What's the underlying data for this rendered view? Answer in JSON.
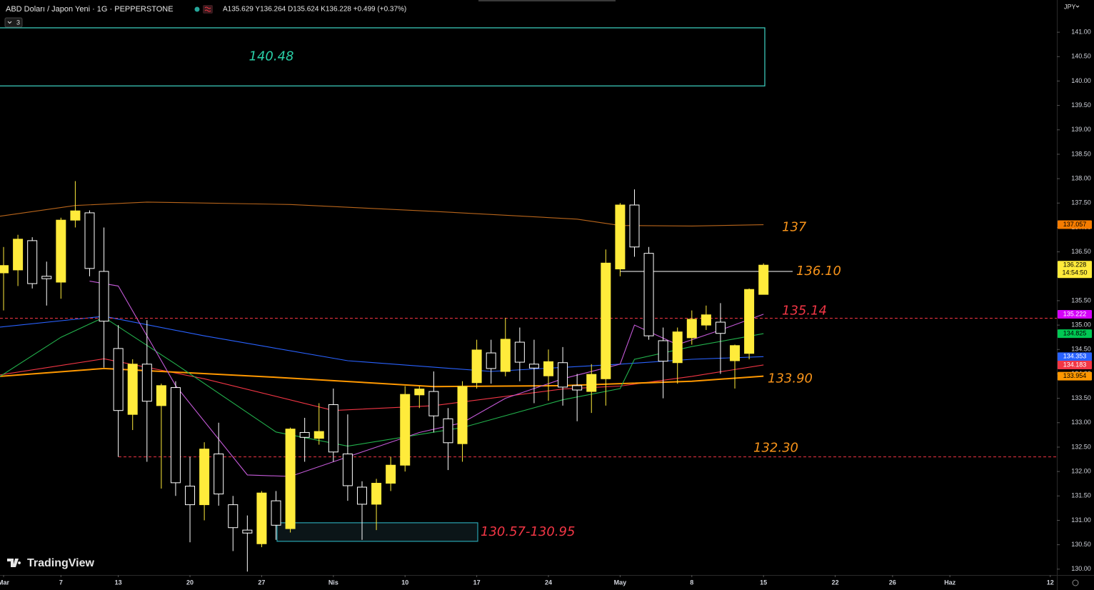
{
  "chart_data": {
    "type": "candlestick",
    "title": "ABD Doları / Japon Yeni · 1G · PEPPERSTONE",
    "quote": "A135.629 Y136.264 D135.624 K136.228 +0.499 (+0.37%)",
    "indicator_count": 3,
    "currency": "JPY",
    "watermark": "TradingView",
    "up_color": "#ffeb3b",
    "down_color": "#ffffff",
    "open": [
      136.07,
      136.13,
      136.73,
      136.0,
      135.88,
      137.15,
      137.3,
      136.1,
      134.52,
      133.17,
      134.2,
      133.35,
      133.72,
      131.7,
      131.32,
      132.36,
      131.32,
      130.8,
      130.52,
      131.4,
      130.83,
      132.8,
      132.68,
      133.37,
      132.36,
      131.68,
      131.33,
      131.76,
      132.13,
      133.57,
      133.64,
      133.08,
      132.57,
      133.82,
      134.43,
      134.05,
      134.65,
      134.2,
      133.96,
      134.23,
      133.76,
      133.64,
      133.9,
      136.15,
      137.46,
      136.47,
      134.68,
      134.23,
      134.74,
      135.0,
      135.06,
      134.27,
      134.42,
      135.629
    ],
    "high": [
      136.6,
      136.85,
      136.8,
      136.3,
      137.2,
      137.95,
      137.35,
      137.0,
      135.0,
      134.3,
      135.1,
      133.8,
      133.85,
      132.3,
      132.6,
      133.0,
      131.5,
      131.1,
      131.6,
      131.6,
      132.9,
      133.1,
      133.4,
      133.7,
      133.17,
      131.8,
      131.85,
      132.3,
      133.75,
      133.75,
      134.05,
      133.3,
      133.85,
      134.7,
      134.7,
      135.15,
      134.95,
      134.7,
      134.5,
      134.55,
      134.0,
      134.2,
      136.55,
      137.5,
      137.78,
      136.6,
      134.95,
      134.95,
      135.3,
      135.4,
      135.45,
      134.6,
      135.75,
      136.264
    ],
    "low": [
      135.3,
      135.8,
      135.75,
      135.4,
      135.54,
      137.0,
      136.0,
      134.13,
      132.3,
      132.85,
      132.2,
      131.65,
      131.5,
      130.55,
      131.0,
      131.3,
      130.37,
      129.95,
      130.45,
      130.6,
      130.75,
      132.2,
      132.55,
      132.2,
      131.4,
      130.6,
      130.8,
      131.6,
      132.0,
      133.3,
      132.8,
      132.03,
      132.2,
      133.7,
      133.8,
      133.95,
      133.85,
      133.4,
      133.45,
      133.35,
      133.03,
      133.2,
      133.35,
      136.0,
      136.4,
      134.7,
      133.5,
      133.8,
      134.6,
      134.9,
      134.0,
      133.7,
      134.3,
      135.624
    ],
    "close": [
      136.22,
      136.76,
      135.85,
      135.95,
      137.15,
      137.34,
      136.16,
      135.08,
      133.25,
      134.2,
      133.44,
      133.76,
      131.77,
      131.32,
      132.46,
      131.54,
      130.85,
      130.74,
      131.56,
      130.9,
      132.87,
      132.7,
      132.82,
      132.4,
      131.71,
      131.33,
      131.76,
      132.13,
      133.58,
      133.69,
      133.14,
      132.59,
      133.74,
      134.49,
      134.11,
      134.71,
      134.24,
      134.12,
      134.25,
      133.73,
      133.67,
      133.99,
      136.27,
      137.46,
      136.6,
      134.78,
      134.26,
      134.86,
      135.12,
      135.21,
      134.83,
      134.58,
      135.73,
      136.228
    ],
    "lines": [
      {
        "color": "#b8651b",
        "x": [
          -0.25,
          5,
          10,
          20,
          30,
          40,
          43,
          48,
          53
        ],
        "values": [
          137.23,
          137.45,
          137.52,
          137.47,
          137.33,
          137.17,
          137.04,
          137.03,
          137.057
        ]
      },
      {
        "color": "#2962ff",
        "x": [
          -0.25,
          7,
          14,
          24,
          34,
          43,
          48,
          53
        ],
        "values": [
          134.96,
          135.18,
          134.78,
          134.27,
          134.05,
          134.2,
          134.3,
          134.353
        ]
      },
      {
        "color": "#f23645",
        "x": [
          -0.25,
          7,
          14,
          23,
          30,
          39,
          43,
          48,
          53
        ],
        "values": [
          133.98,
          134.31,
          133.9,
          133.25,
          133.35,
          133.69,
          133.75,
          133.95,
          134.183
        ]
      },
      {
        "color": "#ff9800",
        "x": [
          -0.25,
          7,
          19,
          30,
          39,
          48,
          53
        ],
        "values": [
          133.95,
          134.11,
          133.93,
          133.74,
          133.76,
          133.85,
          133.954
        ]
      },
      {
        "color": "#22b14c",
        "x": [
          -0.25,
          4,
          7,
          12,
          19,
          24,
          32,
          39,
          43,
          44,
          48,
          53
        ],
        "values": [
          133.95,
          134.75,
          135.16,
          134.2,
          132.81,
          132.52,
          132.9,
          133.47,
          133.7,
          134.3,
          134.56,
          134.825
        ]
      },
      {
        "color": "#c45ad8",
        "x": [
          6,
          8,
          12,
          17,
          20,
          24,
          29,
          32,
          35,
          39,
          43,
          44,
          47,
          50,
          53
        ],
        "values": [
          135.9,
          135.8,
          133.76,
          131.93,
          131.9,
          132.3,
          132.8,
          133.0,
          133.5,
          133.9,
          134.2,
          135.0,
          134.6,
          134.9,
          135.222
        ]
      }
    ],
    "levels": [
      {
        "label": "137",
        "value": 137,
        "color": "#f7931a"
      },
      {
        "label": "136.10",
        "value": 136.1,
        "color": "#f7931a",
        "line_color": "#ffffff",
        "line_style": "solid"
      },
      {
        "label": "135.14",
        "value": 135.14,
        "color": "#f23645",
        "line_color": "#f23645",
        "line_style": "dashed"
      },
      {
        "label": "133.90",
        "value": 133.9,
        "color": "#f7931a"
      },
      {
        "label": "132.30",
        "value": 132.3,
        "color": "#f7931a",
        "line_color": "#f23645",
        "line_style": "dashed"
      }
    ],
    "zones": [
      {
        "label": "140.48",
        "range": [
          139.9,
          141.09
        ],
        "stroke": "#3fd6c6",
        "color": "#2ad0a8"
      },
      {
        "label": "130.57-130.95",
        "range": [
          130.57,
          130.95
        ],
        "stroke": "#2aa3b0",
        "color": "#f23645"
      }
    ],
    "price_tags": [
      {
        "value": 137.057,
        "color": "#f57c00",
        "text_color": "#000000"
      },
      {
        "value": 136.228,
        "color": "#ffeb3b",
        "text_color": "#000000",
        "countdown": "14:54:50"
      },
      {
        "value": 135.222,
        "color": "#d500f9",
        "text_color": "#ffffff"
      },
      {
        "value": 134.825,
        "color": "#00c853",
        "text_color": "#000000"
      },
      {
        "value": 134.353,
        "color": "#2962ff",
        "text_color": "#ffffff"
      },
      {
        "value": 134.183,
        "color": "#f23645",
        "text_color": "#ffffff"
      },
      {
        "value": 133.954,
        "color": "#ff9800",
        "text_color": "#000000"
      }
    ],
    "xlim": [
      -0.25,
      73.46
    ],
    "ylim": [
      129.88,
      141.66
    ],
    "xticks": [
      {
        "value": 0,
        "label": "Mar"
      },
      {
        "value": 4,
        "label": "7"
      },
      {
        "value": 8,
        "label": "13"
      },
      {
        "value": 13,
        "label": "20"
      },
      {
        "value": 18,
        "label": "27"
      },
      {
        "value": 23,
        "label": "Nis"
      },
      {
        "value": 28,
        "label": "10"
      },
      {
        "value": 33,
        "label": "17"
      },
      {
        "value": 38,
        "label": "24"
      },
      {
        "value": 43,
        "label": "May"
      },
      {
        "value": 48,
        "label": "8"
      },
      {
        "value": 53,
        "label": "15"
      },
      {
        "value": 58,
        "label": "22"
      },
      {
        "value": 62,
        "label": "26"
      },
      {
        "value": 66,
        "label": "Haz"
      },
      {
        "value": 73,
        "label": "12"
      }
    ],
    "yticks": [
      {
        "value": 130,
        "label": "130.00"
      },
      {
        "value": 130.5,
        "label": "130.50"
      },
      {
        "value": 131,
        "label": "131.00"
      },
      {
        "value": 131.5,
        "label": "131.50"
      },
      {
        "value": 132,
        "label": "132.00"
      },
      {
        "value": 132.5,
        "label": "132.50"
      },
      {
        "value": 133,
        "label": "133.00"
      },
      {
        "value": 133.5,
        "label": "133.50"
      },
      {
        "value": 134,
        "label": "134.00"
      },
      {
        "value": 134.5,
        "label": "134.50"
      },
      {
        "value": 135,
        "label": "135.00"
      },
      {
        "value": 135.5,
        "label": "135.50"
      },
      {
        "value": 136,
        "label": "136.00"
      },
      {
        "value": 136.5,
        "label": "136.50"
      },
      {
        "value": 137,
        "label": "137.00"
      },
      {
        "value": 137.5,
        "label": "137.50"
      },
      {
        "value": 138,
        "label": "138.00"
      },
      {
        "value": 138.5,
        "label": "138.50"
      },
      {
        "value": 139,
        "label": "139.00"
      },
      {
        "value": 139.5,
        "label": "139.50"
      },
      {
        "value": 140,
        "label": "140.00"
      },
      {
        "value": 140.5,
        "label": "140.50"
      },
      {
        "value": 141,
        "label": "141.00"
      }
    ],
    "grid": false
  }
}
